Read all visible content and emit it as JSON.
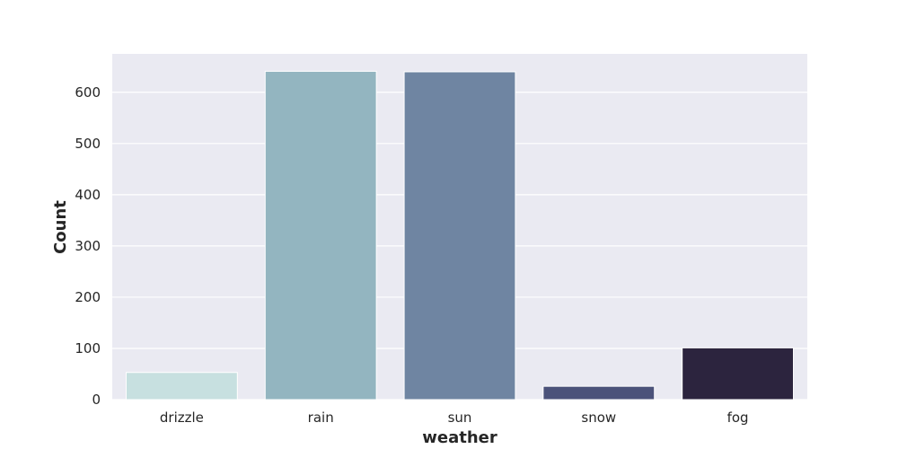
{
  "chart_data": {
    "type": "bar",
    "categories": [
      "drizzle",
      "rain",
      "sun",
      "snow",
      "fog"
    ],
    "values": [
      53,
      641,
      640,
      26,
      101
    ],
    "xlabel": "weather",
    "ylabel": "Count",
    "ylim": [
      0,
      675
    ],
    "yticks": [
      0,
      100,
      200,
      300,
      400,
      500,
      600
    ],
    "ytick_labels": [
      "0",
      "100",
      "200",
      "300",
      "400",
      "500",
      "600"
    ],
    "grid": true,
    "colors": {
      "plot_background": "#eaeaf2",
      "grid": "#ffffff",
      "bars": [
        "#c7e0e0",
        "#93b5c0",
        "#6f85a2",
        "#4b527a",
        "#2c243e"
      ]
    }
  }
}
